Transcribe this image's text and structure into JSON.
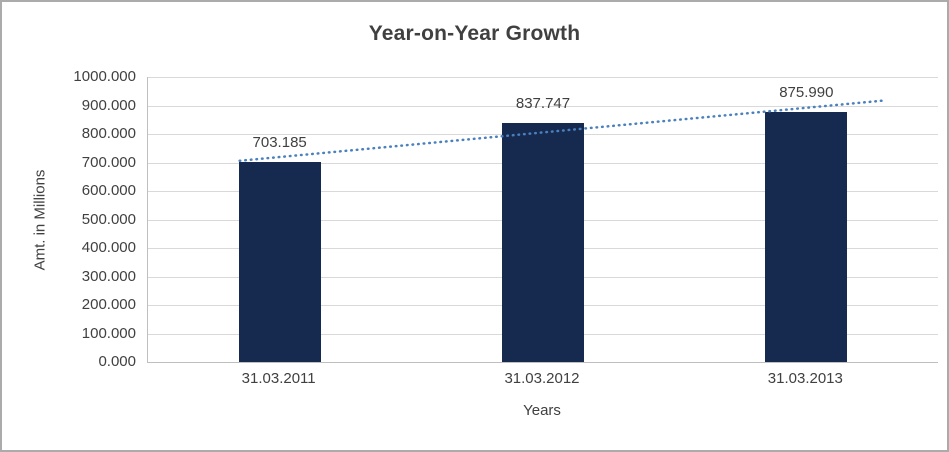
{
  "chart_data": {
    "type": "bar",
    "title": "Year-on-Year Growth",
    "xlabel": "Years",
    "ylabel": "Amt. in Millions",
    "categories": [
      "31.03.2011",
      "31.03.2012",
      "31.03.2013"
    ],
    "values": [
      703.185,
      837.747,
      875.99
    ],
    "value_labels": [
      "703.185",
      "837.747",
      "875.990"
    ],
    "y_ticks": [
      "0.000",
      "100.000",
      "200.000",
      "300.000",
      "400.000",
      "500.000",
      "600.000",
      "700.000",
      "800.000",
      "900.000",
      "1000.000"
    ],
    "ylim": [
      0,
      1000
    ],
    "grid": true,
    "legend_position": "none",
    "bar_color": "#16294e",
    "trendline": {
      "type": "linear",
      "style": "dotted",
      "color": "#4a80bd"
    },
    "gridline_color": "#d9d9d9",
    "axis_line_color": "#bfbfbf",
    "text_color": "#404040"
  }
}
